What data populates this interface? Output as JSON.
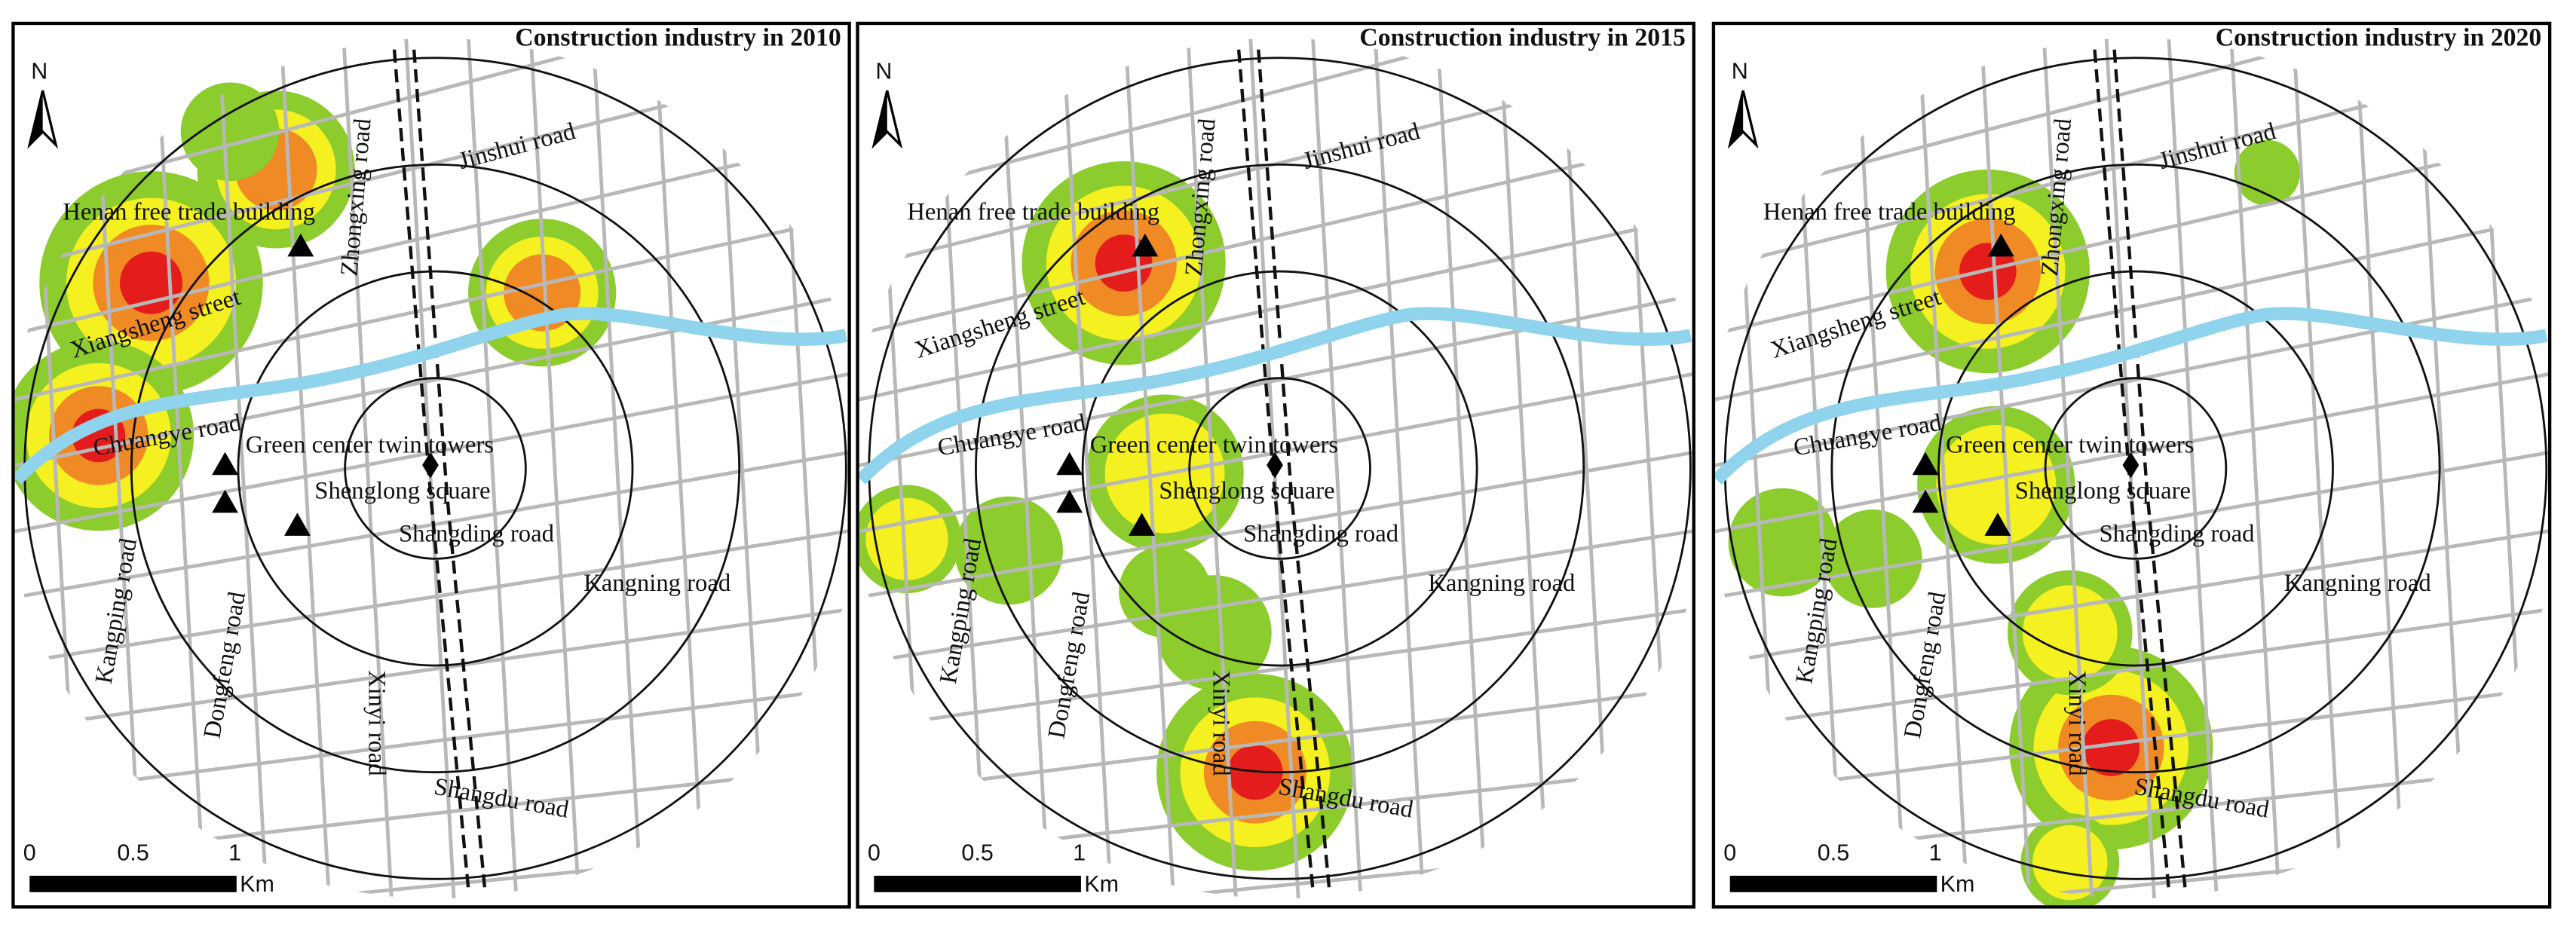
{
  "panels": [
    {
      "title": "Construction industry in 2010",
      "north": "N",
      "labels": [
        "Henan free trade building",
        "Xiangsheng street",
        "Chuangye road",
        "Green center twin towers",
        "Shenglong square",
        "Shangding road",
        "Kangning road",
        "Kangping road",
        "Dongfeng road",
        "Xinyi road",
        "Shangdu road",
        "Zhongxing road",
        "Jinshui road"
      ],
      "scale_bar": {
        "ticks": [
          "0",
          "0.5",
          "1"
        ],
        "unit": "Km"
      }
    },
    {
      "title": "Construction industry in 2015",
      "north": "N",
      "labels": [
        "Henan free trade building",
        "Xiangsheng street",
        "Chuangye road",
        "Green center twin towers",
        "Shenglong square",
        "Shangding road",
        "Kangning road",
        "Kangping road",
        "Dongfeng road",
        "Xinyi road",
        "Shangdu road",
        "Zhongxing road",
        "Jinshui road"
      ],
      "scale_bar": {
        "ticks": [
          "0",
          "0.5",
          "1"
        ],
        "unit": "Km"
      }
    },
    {
      "title": "Construction industry in 2020",
      "north": "N",
      "labels": [
        "Henan free trade building",
        "Xiangsheng street",
        "Chuangye road",
        "Green center twin towers",
        "Shenglong square",
        "Shangding road",
        "Kangning road",
        "Kangping road",
        "Dongfeng road",
        "Xinyi road",
        "Shangdu road",
        "Zhongxing road",
        "Jinshui road"
      ],
      "scale_bar": {
        "ticks": [
          "0",
          "0.5",
          "1"
        ],
        "unit": "Km"
      }
    }
  ]
}
